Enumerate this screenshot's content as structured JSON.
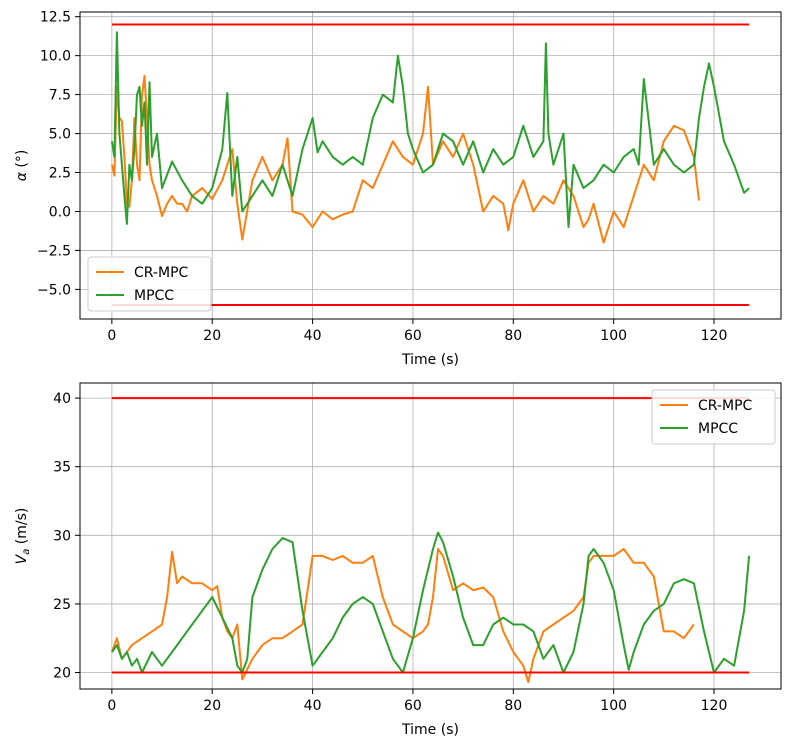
{
  "chart_data": [
    {
      "type": "line",
      "title": "",
      "xlabel": "Time (s)",
      "ylabel": "α (°)",
      "xlim": [
        -6.35,
        133.35
      ],
      "ylim": [
        -6.9,
        12.8
      ],
      "xticks": [
        0,
        20,
        40,
        60,
        80,
        100,
        120
      ],
      "yticks": [
        -5.0,
        -2.5,
        0.0,
        2.5,
        5.0,
        7.5,
        10.0,
        12.5
      ],
      "ytick_labels": [
        "−5.0",
        "−2.5",
        "0.0",
        "2.5",
        "5.0",
        "7.5",
        "10.0",
        "12.5"
      ],
      "grid": true,
      "legend": {
        "position": "lower-left",
        "entries": [
          "CR-MPC",
          "MPCC"
        ]
      },
      "series": [
        {
          "name": "CR-MPC",
          "color": "#ff7f0e",
          "x": [
            0,
            0.5,
            1,
            1.5,
            2,
            2.5,
            3,
            3.5,
            4,
            4.5,
            5,
            5.5,
            6,
            6.5,
            7,
            7.5,
            8,
            9,
            10,
            11,
            12,
            13,
            14,
            15,
            16,
            18,
            20,
            22,
            24,
            25,
            26,
            28,
            30,
            32,
            34,
            35,
            36,
            38,
            40,
            42,
            44,
            46,
            48,
            50,
            52,
            54,
            56,
            58,
            60,
            62,
            63,
            64,
            66,
            68,
            70,
            72,
            74,
            76,
            78,
            79,
            80,
            82,
            84,
            86,
            88,
            90,
            92,
            94,
            95,
            96,
            98,
            100,
            102,
            104,
            106,
            108,
            110,
            112,
            114,
            116,
            117
          ],
          "y": [
            3.0,
            2.3,
            8.0,
            6.0,
            5.8,
            3.5,
            0.5,
            0.3,
            2.0,
            6.0,
            3.0,
            2.0,
            7.5,
            8.7,
            6.0,
            3.0,
            2.0,
            1.0,
            -0.3,
            0.5,
            1.0,
            0.5,
            0.5,
            0.0,
            1.0,
            1.5,
            0.8,
            2.0,
            4.0,
            0.5,
            -1.8,
            2.0,
            3.5,
            2.0,
            3.0,
            4.7,
            0.0,
            -0.2,
            -1.0,
            0.0,
            -0.5,
            -0.2,
            0.0,
            2.0,
            1.5,
            3.0,
            4.5,
            3.5,
            3.0,
            5.0,
            8.0,
            3.0,
            4.5,
            3.5,
            5.0,
            3.0,
            0.0,
            1.0,
            0.5,
            -1.2,
            0.5,
            2.0,
            0.0,
            1.0,
            0.5,
            2.0,
            1.0,
            -1.0,
            -0.5,
            0.5,
            -2.0,
            0.0,
            -1.0,
            1.0,
            3.0,
            2.0,
            4.5,
            5.5,
            5.2,
            3.5,
            0.7
          ]
        },
        {
          "name": "MPCC",
          "color": "#2ca02c",
          "x": [
            0,
            0.5,
            1,
            1.5,
            2,
            2.5,
            3,
            3.5,
            4,
            4.5,
            5,
            5.5,
            6,
            6.5,
            7,
            7.5,
            8,
            9,
            10,
            12,
            14,
            16,
            18,
            20,
            22,
            23,
            24,
            25,
            26,
            28,
            30,
            32,
            34,
            36,
            38,
            40,
            41,
            42,
            44,
            46,
            48,
            50,
            52,
            54,
            56,
            57,
            58,
            59,
            60,
            62,
            64,
            66,
            68,
            70,
            72,
            74,
            76,
            78,
            80,
            82,
            84,
            86,
            86.5,
            87,
            88,
            90,
            91,
            92,
            94,
            96,
            98,
            100,
            102,
            104,
            105,
            106,
            108,
            110,
            112,
            114,
            116,
            117,
            118,
            119,
            120,
            122,
            124,
            126,
            127
          ],
          "y": [
            4.5,
            3.5,
            11.5,
            5.0,
            3.0,
            1.0,
            -0.8,
            3.0,
            2.0,
            4.0,
            7.5,
            8.0,
            5.5,
            7.0,
            3.0,
            8.3,
            3.5,
            5.0,
            1.5,
            3.2,
            2.0,
            1.0,
            0.5,
            1.5,
            4.0,
            7.6,
            1.0,
            3.5,
            0.0,
            1.0,
            2.0,
            1.0,
            3.0,
            1.0,
            4.0,
            6.0,
            3.8,
            4.5,
            3.5,
            3.0,
            3.5,
            3.0,
            6.0,
            7.5,
            7.0,
            10.0,
            8.0,
            5.0,
            4.0,
            2.5,
            3.0,
            5.0,
            4.5,
            3.0,
            4.5,
            2.5,
            4.0,
            3.0,
            3.5,
            5.5,
            3.5,
            4.5,
            10.8,
            5.0,
            3.0,
            5.0,
            -1.0,
            3.0,
            1.5,
            2.0,
            3.0,
            2.5,
            3.5,
            4.0,
            3.0,
            8.5,
            3.0,
            4.0,
            3.0,
            2.5,
            3.0,
            6.0,
            8.0,
            9.5,
            8.0,
            4.5,
            3.0,
            1.2,
            1.5
          ]
        },
        {
          "name": "",
          "color": "#ff0000",
          "x": [
            0,
            127
          ],
          "y": [
            12.0,
            12.0
          ]
        },
        {
          "name": "",
          "color": "#ff0000",
          "x": [
            0,
            127
          ],
          "y": [
            -6.0,
            -6.0
          ]
        }
      ]
    },
    {
      "type": "line",
      "title": "",
      "xlabel": "Time (s)",
      "ylabel": "V_a (m/s)",
      "xlim": [
        -6.35,
        133.35
      ],
      "ylim": [
        18.8,
        41.1
      ],
      "xticks": [
        0,
        20,
        40,
        60,
        80,
        100,
        120
      ],
      "yticks": [
        20,
        25,
        30,
        35,
        40
      ],
      "ytick_labels": [
        "20",
        "25",
        "30",
        "35",
        "40"
      ],
      "grid": true,
      "legend": {
        "position": "top-right",
        "entries": [
          "CR-MPC",
          "MPCC"
        ]
      },
      "series": [
        {
          "name": "CR-MPC",
          "color": "#ff7f0e",
          "x": [
            0,
            1,
            2,
            3,
            4,
            6,
            8,
            10,
            11,
            12,
            13,
            14,
            16,
            18,
            20,
            21,
            22,
            23,
            24,
            25,
            26,
            28,
            30,
            32,
            34,
            36,
            38,
            39,
            40,
            42,
            44,
            46,
            48,
            50,
            52,
            53,
            54,
            56,
            58,
            60,
            62,
            63,
            64,
            65,
            66,
            68,
            70,
            72,
            74,
            76,
            78,
            80,
            82,
            83,
            84,
            86,
            88,
            90,
            92,
            94,
            95,
            96,
            98,
            100,
            102,
            104,
            106,
            108,
            110,
            112,
            114,
            116
          ],
          "y": [
            21.5,
            22.5,
            21.0,
            21.5,
            22.0,
            22.5,
            23.0,
            23.5,
            25.5,
            28.8,
            26.5,
            27.0,
            26.5,
            26.5,
            26.0,
            26.3,
            24.0,
            23.0,
            22.5,
            23.5,
            19.5,
            21.0,
            22.0,
            22.5,
            22.5,
            23.0,
            23.5,
            26.0,
            28.5,
            28.5,
            28.2,
            28.5,
            28.0,
            28.0,
            28.5,
            27.0,
            25.5,
            23.5,
            23.0,
            22.5,
            23.0,
            23.5,
            25.5,
            29.0,
            28.5,
            26.0,
            26.5,
            26.0,
            26.2,
            25.5,
            23.0,
            21.5,
            20.5,
            19.3,
            21.0,
            23.0,
            23.5,
            24.0,
            24.5,
            25.5,
            28.0,
            28.5,
            28.5,
            28.5,
            29.0,
            28.0,
            28.0,
            27.0,
            23.0,
            23.0,
            22.5,
            23.5
          ]
        },
        {
          "name": "MPCC",
          "color": "#2ca02c",
          "x": [
            0,
            1,
            2,
            3,
            4,
            5,
            6,
            8,
            10,
            12,
            14,
            16,
            18,
            20,
            22,
            24,
            25,
            26,
            27,
            28,
            30,
            32,
            34,
            36,
            38,
            40,
            42,
            44,
            46,
            48,
            50,
            52,
            54,
            56,
            58,
            60,
            62,
            64,
            65,
            66,
            68,
            70,
            72,
            74,
            76,
            78,
            80,
            82,
            84,
            86,
            88,
            90,
            92,
            94,
            95,
            96,
            98,
            100,
            102,
            103,
            104,
            106,
            108,
            110,
            112,
            114,
            116,
            118,
            120,
            122,
            124,
            126,
            127
          ],
          "y": [
            21.5,
            22.0,
            21.0,
            21.5,
            20.5,
            21.0,
            20.0,
            21.5,
            20.5,
            21.5,
            22.5,
            23.5,
            24.5,
            25.5,
            24.0,
            22.5,
            20.5,
            20.0,
            21.0,
            25.5,
            27.5,
            29.0,
            29.8,
            29.5,
            24.5,
            20.5,
            21.5,
            22.5,
            24.0,
            25.0,
            25.5,
            25.0,
            23.0,
            21.0,
            20.0,
            22.5,
            26.0,
            29.0,
            30.2,
            29.5,
            27.0,
            24.0,
            22.0,
            22.0,
            23.5,
            24.0,
            23.5,
            23.5,
            23.0,
            21.0,
            22.0,
            20.0,
            21.5,
            25.0,
            28.5,
            29.0,
            28.0,
            26.0,
            22.0,
            20.2,
            21.5,
            23.5,
            24.5,
            25.0,
            26.5,
            26.8,
            26.5,
            23.0,
            20.0,
            21.0,
            20.5,
            24.5,
            28.5
          ]
        },
        {
          "name": "",
          "color": "#ff0000",
          "x": [
            0,
            127
          ],
          "y": [
            40.0,
            40.0
          ]
        },
        {
          "name": "",
          "color": "#ff0000",
          "x": [
            0,
            127
          ],
          "y": [
            20.0,
            20.0
          ]
        }
      ]
    }
  ]
}
